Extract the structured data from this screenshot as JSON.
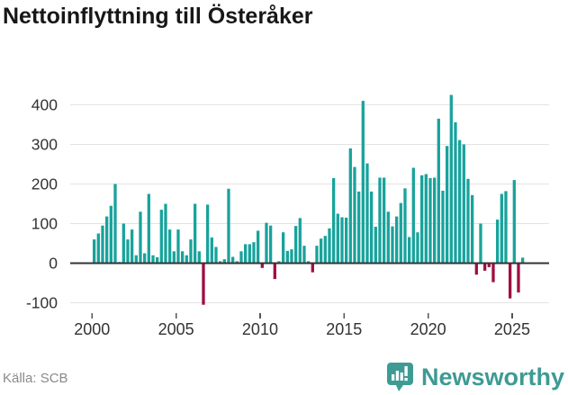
{
  "title": "Nettoinflyttning till Österåker",
  "source": "Källa: SCB",
  "brand": {
    "name": "Newsworthy"
  },
  "colors": {
    "positive_bar": "#18a39c",
    "negative_bar": "#a00d42",
    "gridline": "#e3e3e3",
    "zero_axis": "#333333",
    "axis_text": "#333333",
    "title_text": "#171717",
    "source_text": "#8a8a8a",
    "brand_teal": "#3d9b94"
  },
  "chart_data": {
    "type": "bar",
    "title": "Nettoinflyttning till Österåker",
    "xlabel": "",
    "ylabel": "",
    "frequency": "quarterly",
    "start_period": "2000 Q1",
    "end_period": "2025 Q3",
    "x_tick_years": [
      2000,
      2005,
      2010,
      2015,
      2020,
      2025
    ],
    "y_ticks": [
      -100,
      0,
      100,
      200,
      300,
      400
    ],
    "ylim": [
      -130,
      440
    ],
    "grid": "horizontal",
    "legend": "none",
    "series": [
      {
        "name": "Nettoinflyttning",
        "values": [
          60,
          75,
          95,
          118,
          145,
          200,
          3,
          100,
          60,
          85,
          20,
          130,
          25,
          175,
          20,
          15,
          135,
          150,
          85,
          30,
          85,
          30,
          20,
          60,
          150,
          30,
          -105,
          148,
          65,
          41,
          5,
          10,
          188,
          16,
          5,
          30,
          48,
          48,
          53,
          82,
          -12,
          102,
          95,
          -40,
          5,
          78,
          31,
          35,
          94,
          114,
          44,
          5,
          -23,
          44,
          62,
          69,
          88,
          215,
          125,
          116,
          115,
          290,
          243,
          181,
          410,
          252,
          181,
          92,
          216,
          216,
          130,
          93,
          118,
          152,
          189,
          66,
          241,
          78,
          222,
          225,
          215,
          216,
          365,
          183,
          296,
          425,
          356,
          311,
          300,
          213,
          172,
          -29,
          100,
          -19,
          -10,
          -48,
          110,
          175,
          182,
          -89,
          210,
          -74,
          14
        ]
      }
    ]
  }
}
